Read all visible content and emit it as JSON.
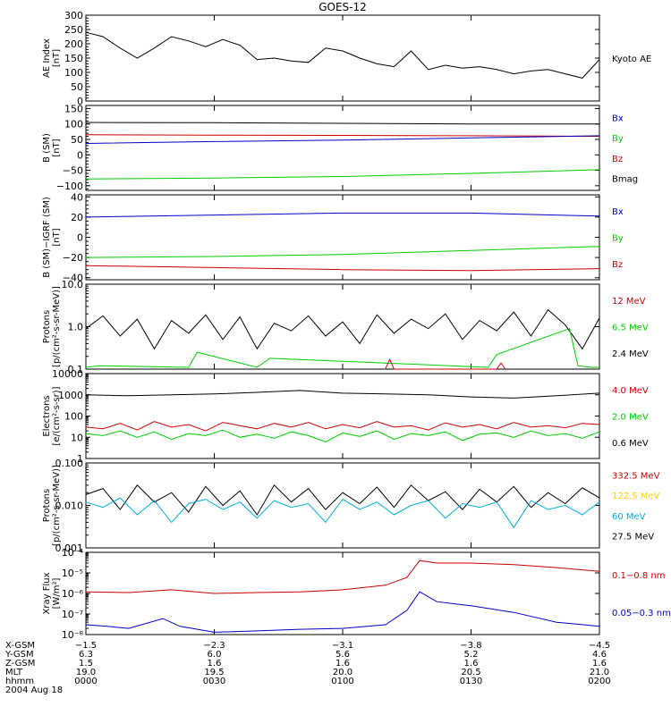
{
  "title": "GOES-12",
  "date_label": "2004 Aug 18",
  "chart_data": [
    {
      "type": "line",
      "ylabel": [
        "AE Index",
        "[nT]"
      ],
      "ylim": [
        0,
        300
      ],
      "yticks": [
        0,
        50,
        100,
        150,
        200,
        250,
        300
      ],
      "ytick_labels": [
        "0",
        "50",
        "100",
        "150",
        "200",
        "250",
        "300"
      ],
      "legend": [
        {
          "name": "Kyoto AE",
          "color": "#000000"
        }
      ],
      "series": [
        {
          "name": "Kyoto AE",
          "color": "#000000",
          "x": [
            0,
            4,
            8,
            12,
            16,
            20,
            24,
            28,
            32,
            36,
            40,
            44,
            48,
            52,
            56,
            60,
            64,
            68,
            72,
            76,
            80,
            84,
            88,
            92,
            96,
            100,
            104,
            108,
            112,
            116,
            120
          ],
          "values": [
            240,
            225,
            185,
            150,
            185,
            225,
            210,
            190,
            215,
            195,
            145,
            150,
            140,
            135,
            185,
            175,
            150,
            130,
            120,
            175,
            110,
            125,
            115,
            120,
            110,
            95,
            105,
            110,
            95,
            80,
            145
          ]
        }
      ]
    },
    {
      "type": "line",
      "ylabel": [
        "B (SM)",
        "[nT]"
      ],
      "ylim": [
        -115,
        160
      ],
      "yticks": [
        -100,
        -50,
        0,
        50,
        100,
        150
      ],
      "ytick_labels": [
        "−100",
        "−50",
        "0",
        "50",
        "100",
        "150"
      ],
      "legend": [
        {
          "name": "Bx",
          "color": "#0000cc"
        },
        {
          "name": "By",
          "color": "#00cc00"
        },
        {
          "name": "Bz",
          "color": "#cc0000"
        },
        {
          "name": "Bmag",
          "color": "#000000"
        }
      ],
      "series": [
        {
          "name": "Bmag",
          "color": "#000000",
          "x": [
            0,
            30,
            60,
            90,
            120
          ],
          "values": [
            105,
            104,
            102,
            100,
            100
          ]
        },
        {
          "name": "Bz",
          "color": "#cc0000",
          "x": [
            0,
            30,
            60,
            90,
            120
          ],
          "values": [
            65,
            64,
            63,
            62,
            60
          ]
        },
        {
          "name": "Bx",
          "color": "#0000cc",
          "x": [
            0,
            30,
            60,
            90,
            120
          ],
          "values": [
            37,
            43,
            48,
            55,
            62
          ]
        },
        {
          "name": "By",
          "color": "#00cc00",
          "x": [
            0,
            30,
            60,
            90,
            120
          ],
          "values": [
            -78,
            -75,
            -70,
            -60,
            -48
          ]
        }
      ]
    },
    {
      "type": "line",
      "ylabel": [
        "B (SM)−IGRF (SM)",
        "[nT]"
      ],
      "ylim": [
        -42,
        42
      ],
      "yticks": [
        -40,
        -20,
        0,
        20,
        40
      ],
      "ytick_labels": [
        "−40",
        "−20",
        "0",
        "20",
        "40"
      ],
      "legend": [
        {
          "name": "Bx",
          "color": "#0000cc"
        },
        {
          "name": "By",
          "color": "#00cc00"
        },
        {
          "name": "Bz",
          "color": "#cc0000"
        }
      ],
      "series": [
        {
          "name": "Bx",
          "color": "#0000cc",
          "x": [
            0,
            30,
            60,
            90,
            120
          ],
          "values": [
            20,
            22,
            24,
            24,
            21
          ]
        },
        {
          "name": "By",
          "color": "#00cc00",
          "x": [
            0,
            30,
            60,
            90,
            120
          ],
          "values": [
            -20,
            -19,
            -17,
            -13,
            -9
          ]
        },
        {
          "name": "Bz",
          "color": "#cc0000",
          "x": [
            0,
            30,
            60,
            90,
            120
          ],
          "values": [
            -28,
            -30,
            -32,
            -33,
            -31
          ]
        }
      ]
    },
    {
      "type": "line",
      "log": true,
      "ylabel": [
        "Protons",
        "[p/(cm²-s-sr-MeV)]"
      ],
      "ylim": [
        0.1,
        10
      ],
      "yticks": [
        0.1,
        1,
        10
      ],
      "ytick_labels": [
        "0.1",
        "1.0",
        "10.0"
      ],
      "legend": [
        {
          "name": "12 MeV",
          "color": "#cc0000"
        },
        {
          "name": "6.5 MeV",
          "color": "#00cc00"
        },
        {
          "name": "2.4 MeV",
          "color": "#000000"
        }
      ],
      "series": [
        {
          "name": "2.4 MeV",
          "color": "#000000",
          "x": [
            0,
            4,
            8,
            12,
            16,
            20,
            24,
            28,
            32,
            36,
            40,
            44,
            48,
            52,
            56,
            60,
            64,
            68,
            72,
            76,
            80,
            84,
            88,
            92,
            96,
            100,
            104,
            108,
            112,
            116,
            120
          ],
          "values": [
            0.9,
            1.8,
            0.6,
            1.5,
            0.3,
            1.4,
            0.7,
            1.9,
            0.5,
            1.7,
            0.3,
            1.2,
            0.8,
            1.8,
            0.6,
            1.3,
            0.4,
            1.9,
            0.7,
            1.5,
            0.9,
            2.0,
            0.5,
            1.4,
            0.8,
            2.2,
            0.6,
            2.5,
            1.1,
            0.3,
            1.6
          ]
        },
        {
          "name": "6.5 MeV",
          "color": "#00cc00",
          "x": [
            0,
            3,
            24,
            26,
            40,
            43,
            94,
            96,
            113,
            115,
            118,
            120
          ],
          "values": [
            0.11,
            0.12,
            0.11,
            0.25,
            0.11,
            0.18,
            0.11,
            0.22,
            0.9,
            0.12,
            0.11,
            0.11
          ]
        },
        {
          "name": "12 MeV",
          "color": "#cc0000",
          "x": [
            70,
            71,
            72,
            96,
            97,
            98
          ],
          "values": [
            0.1,
            0.17,
            0.1,
            0.1,
            0.14,
            0.1
          ]
        }
      ]
    },
    {
      "type": "line",
      "log": true,
      "ylabel": [
        "Electrons",
        "[e/(cm²-s-sr)]"
      ],
      "ylim": [
        1,
        10000
      ],
      "yticks": [
        1,
        10,
        100,
        1000,
        10000
      ],
      "ytick_labels": [
        "1",
        "10",
        "100",
        "1000",
        "10000"
      ],
      "legend": [
        {
          "name": "4.0 MeV",
          "color": "#cc0000"
        },
        {
          "name": "2.0 MeV",
          "color": "#00cc00"
        },
        {
          "name": "0.6 MeV",
          "color": "#000000"
        }
      ],
      "series": [
        {
          "name": "0.6 MeV",
          "color": "#000000",
          "x": [
            0,
            10,
            20,
            30,
            40,
            50,
            60,
            70,
            80,
            90,
            100,
            110,
            120
          ],
          "values": [
            1000,
            900,
            1000,
            1100,
            1300,
            1600,
            1200,
            1100,
            1000,
            800,
            700,
            900,
            1200
          ]
        },
        {
          "name": "4.0 MeV",
          "color": "#cc0000",
          "x": [
            0,
            4,
            8,
            12,
            16,
            20,
            24,
            28,
            32,
            36,
            40,
            44,
            48,
            52,
            56,
            60,
            64,
            68,
            72,
            76,
            80,
            84,
            88,
            92,
            96,
            100,
            104,
            108,
            112,
            116,
            120
          ],
          "values": [
            30,
            25,
            45,
            22,
            55,
            30,
            40,
            20,
            50,
            35,
            25,
            45,
            30,
            50,
            25,
            40,
            28,
            55,
            30,
            35,
            22,
            48,
            30,
            40,
            25,
            50,
            30,
            35,
            28,
            45,
            40
          ]
        },
        {
          "name": "2.0 MeV",
          "color": "#00cc00",
          "x": [
            0,
            4,
            8,
            12,
            16,
            20,
            24,
            28,
            32,
            36,
            40,
            44,
            48,
            52,
            56,
            60,
            64,
            68,
            72,
            76,
            80,
            84,
            88,
            92,
            96,
            100,
            104,
            108,
            112,
            116,
            120
          ],
          "values": [
            15,
            12,
            20,
            10,
            18,
            8,
            15,
            12,
            22,
            10,
            14,
            9,
            18,
            12,
            6,
            16,
            11,
            20,
            8,
            15,
            12,
            18,
            7,
            14,
            16,
            10,
            20,
            12,
            15,
            9,
            18
          ]
        }
      ]
    },
    {
      "type": "line",
      "log": true,
      "ylabel": [
        "Protons",
        "[p/(cm²-s-sr-MeV)]"
      ],
      "ylim": [
        0.001,
        0.1
      ],
      "yticks": [
        0.001,
        0.01,
        0.1
      ],
      "ytick_labels": [
        "0.001",
        "0.010",
        "0.100"
      ],
      "legend": [
        {
          "name": "332.5 MeV",
          "color": "#cc0000"
        },
        {
          "name": "122.5 MeV",
          "color": "#ffd000"
        },
        {
          "name": "60 MeV",
          "color": "#00aadd"
        },
        {
          "name": "27.5 MeV",
          "color": "#000000"
        }
      ],
      "series": [
        {
          "name": "27.5 MeV",
          "color": "#000000",
          "x": [
            0,
            4,
            8,
            12,
            16,
            20,
            24,
            28,
            32,
            36,
            40,
            44,
            48,
            52,
            56,
            60,
            64,
            68,
            72,
            76,
            80,
            84,
            88,
            92,
            96,
            100,
            104,
            108,
            112,
            116,
            120
          ],
          "values": [
            0.018,
            0.025,
            0.008,
            0.03,
            0.012,
            0.02,
            0.007,
            0.028,
            0.01,
            0.022,
            0.006,
            0.03,
            0.012,
            0.025,
            0.008,
            0.02,
            0.011,
            0.027,
            0.009,
            0.03,
            0.013,
            0.021,
            0.008,
            0.024,
            0.012,
            0.028,
            0.009,
            0.02,
            0.011,
            0.026,
            0.015
          ]
        },
        {
          "name": "60 MeV",
          "color": "#00aadd",
          "x": [
            0,
            4,
            8,
            12,
            16,
            20,
            24,
            28,
            32,
            36,
            40,
            44,
            48,
            52,
            56,
            60,
            64,
            68,
            72,
            76,
            80,
            84,
            88,
            92,
            96,
            100,
            104,
            108,
            112,
            116,
            120
          ],
          "values": [
            0.012,
            0.009,
            0.015,
            0.006,
            0.013,
            0.004,
            0.011,
            0.014,
            0.008,
            0.012,
            0.005,
            0.013,
            0.009,
            0.011,
            0.004,
            0.014,
            0.008,
            0.012,
            0.006,
            0.01,
            0.013,
            0.005,
            0.011,
            0.009,
            0.012,
            0.003,
            0.013,
            0.008,
            0.01,
            0.006,
            0.012
          ]
        }
      ]
    },
    {
      "type": "line",
      "log": true,
      "ylabel": [
        "Xray Flux",
        "[W/m²]"
      ],
      "ylim": [
        1e-08,
        0.0001
      ],
      "yticks": [
        1e-08,
        1e-07,
        1e-06,
        1e-05,
        0.0001
      ],
      "ytick_labels": [
        "10⁻⁸",
        "10⁻⁷",
        "10⁻⁶",
        "10⁻⁵",
        "10⁻⁴"
      ],
      "legend": [
        {
          "name": "0.1−0.8 nm",
          "color": "#cc0000"
        },
        {
          "name": "0.05−0.3 nm",
          "color": "#0000cc"
        }
      ],
      "series": [
        {
          "name": "0.1−0.8 nm",
          "color": "#cc0000",
          "x": [
            0,
            10,
            20,
            30,
            40,
            50,
            60,
            70,
            75,
            78,
            82,
            90,
            100,
            110,
            120
          ],
          "values": [
            1.2e-06,
            1.1e-06,
            1.5e-06,
            1e-06,
            1.1e-06,
            1.2e-06,
            1.5e-06,
            2.5e-06,
            6e-06,
            4e-05,
            3e-05,
            3e-05,
            2.5e-05,
            1.8e-05,
            1.2e-05
          ]
        },
        {
          "name": "0.05−0.3 nm",
          "color": "#0000cc",
          "x": [
            0,
            5,
            10,
            18,
            22,
            30,
            40,
            50,
            60,
            70,
            75,
            78,
            82,
            90,
            100,
            110,
            120
          ],
          "values": [
            3e-08,
            2.5e-08,
            2e-08,
            6e-08,
            2.5e-08,
            1.3e-08,
            1.5e-08,
            1.8e-08,
            2e-08,
            3e-08,
            1.5e-07,
            1.2e-06,
            4e-07,
            2.5e-07,
            1.2e-07,
            4e-08,
            2.5e-08
          ]
        }
      ]
    }
  ],
  "x_axis": {
    "xlim": [
      0,
      120
    ],
    "ticks": [
      0,
      30,
      60,
      90,
      120
    ],
    "rows": [
      {
        "label": "X-GSM",
        "values": [
          "−1.5",
          "−2.3",
          "−3.1",
          "−3.8",
          "−4.5"
        ]
      },
      {
        "label": "Y-GSM",
        "values": [
          "6.3",
          "6.0",
          "5.6",
          "5.2",
          "4.6"
        ]
      },
      {
        "label": "Z-GSM",
        "values": [
          "1.5",
          "1.6",
          "1.6",
          "1.6",
          "1.6"
        ]
      },
      {
        "label": "MLT",
        "values": [
          "19.0",
          "19.5",
          "20.0",
          "20.5",
          "21.0"
        ]
      },
      {
        "label": "hhmm",
        "values": [
          "0000",
          "0030",
          "0100",
          "0130",
          "0200"
        ]
      }
    ]
  }
}
